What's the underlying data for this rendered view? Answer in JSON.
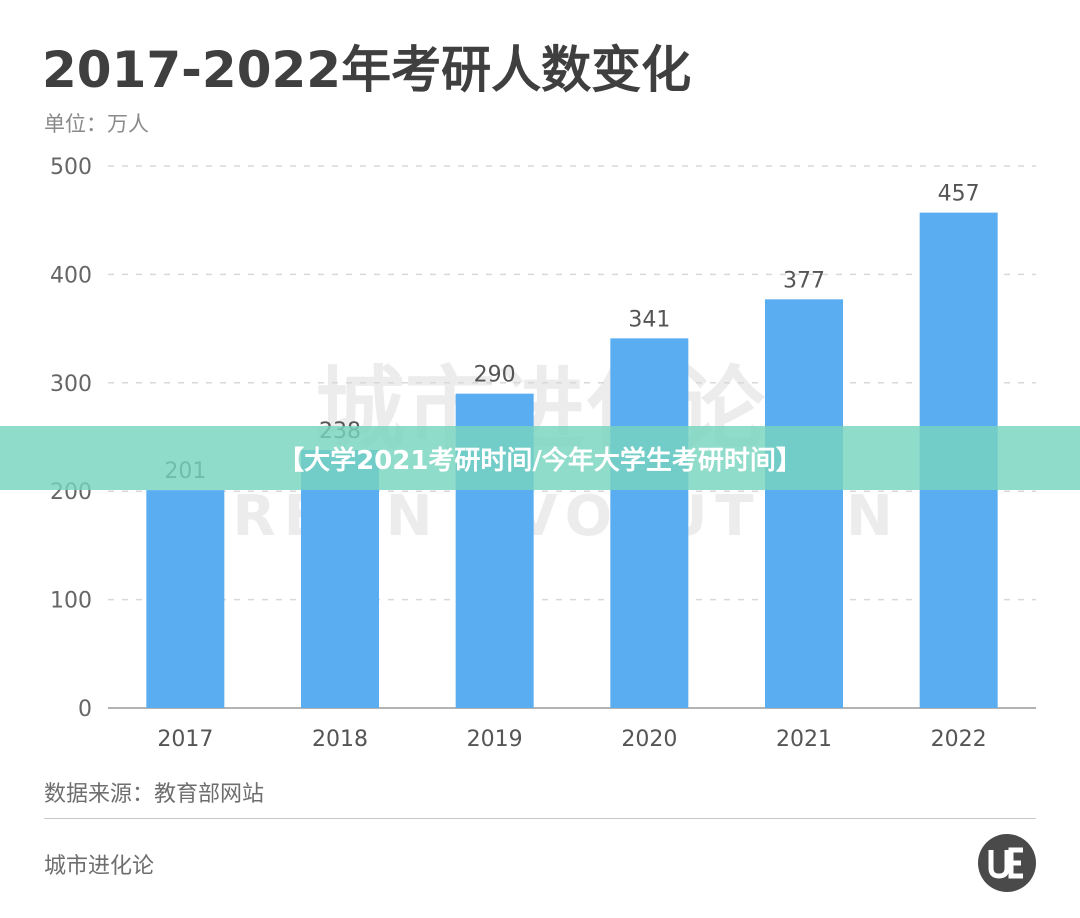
{
  "header": {
    "title": "2017-2022年考研人数变化",
    "unit": "单位：万人"
  },
  "banner": {
    "text": "【大学2021考研时间/今年大学生考研时间】"
  },
  "footer": {
    "source": "数据来源：教育部网站",
    "brand": "城市进化论"
  },
  "colors": {
    "bar": "#5aadf0",
    "grid": "#d9d9d9",
    "axis": "#8a8a8a",
    "banner": "#78d4be"
  },
  "chart_data": {
    "type": "bar",
    "categories": [
      "2017",
      "2018",
      "2019",
      "2020",
      "2021",
      "2022"
    ],
    "values": [
      201,
      238,
      290,
      341,
      377,
      457
    ],
    "data_labels": [
      "201",
      "238",
      "290",
      "341",
      "377",
      "457"
    ],
    "yticks": [
      "0",
      "100",
      "200",
      "300",
      "400",
      "500"
    ],
    "ylim": [
      0,
      500
    ],
    "title": "2017-2022年考研人数变化",
    "ylabel": "单位：万人",
    "grid": true,
    "legend": "none"
  }
}
